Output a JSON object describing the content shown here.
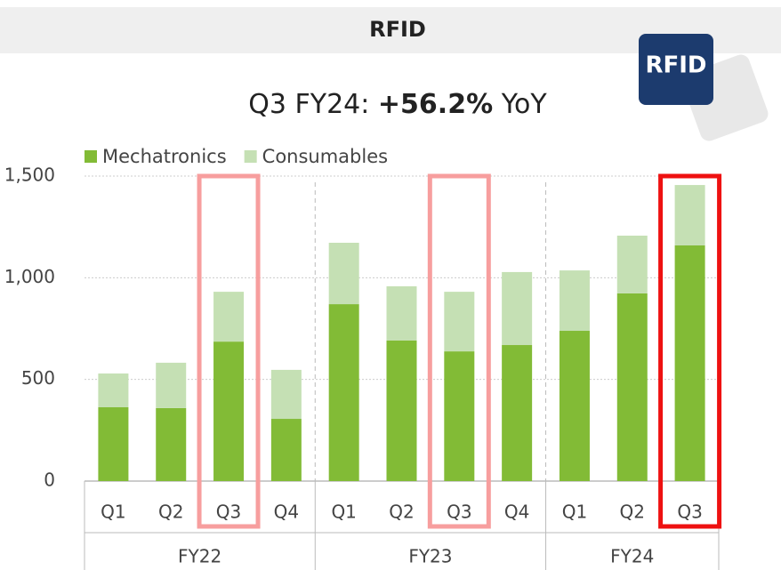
{
  "chart_data": {
    "type": "stacked_bar",
    "title": "RFID",
    "logo_text": "RFID",
    "subtitle_prefix": "Q3 FY24:",
    "subtitle_highlight": "+56.2%",
    "subtitle_suffix": "YoY",
    "groups": [
      {
        "name": "FY22",
        "categories": [
          "Q1",
          "Q2",
          "Q3",
          "Q4"
        ]
      },
      {
        "name": "FY23",
        "categories": [
          "Q1",
          "Q2",
          "Q3",
          "Q4"
        ]
      },
      {
        "name": "FY24",
        "categories": [
          "Q1",
          "Q2",
          "Q3"
        ]
      }
    ],
    "series": [
      {
        "name": "Mechatronics",
        "color": "#82bb36",
        "values": [
          363,
          359,
          686,
          306,
          870,
          691,
          638,
          669,
          739,
          923,
          1159
        ]
      },
      {
        "name": "Consumables",
        "color": "#c5e0b4",
        "values": [
          166,
          223,
          245,
          241,
          302,
          267,
          293,
          359,
          297,
          284,
          297
        ]
      }
    ],
    "ylim": [
      0,
      1500
    ],
    "yticks": [
      0,
      500,
      {
        "value": 1000,
        "label": "1,000"
      },
      {
        "value": 1500,
        "label": "1,500"
      }
    ],
    "grid": true,
    "highlights": [
      {
        "category_index": 2,
        "color": "#f79e9e"
      },
      {
        "category_index": 6,
        "color": "#f79e9e"
      },
      {
        "category_index": 10,
        "color": "#ee1111"
      }
    ]
  }
}
